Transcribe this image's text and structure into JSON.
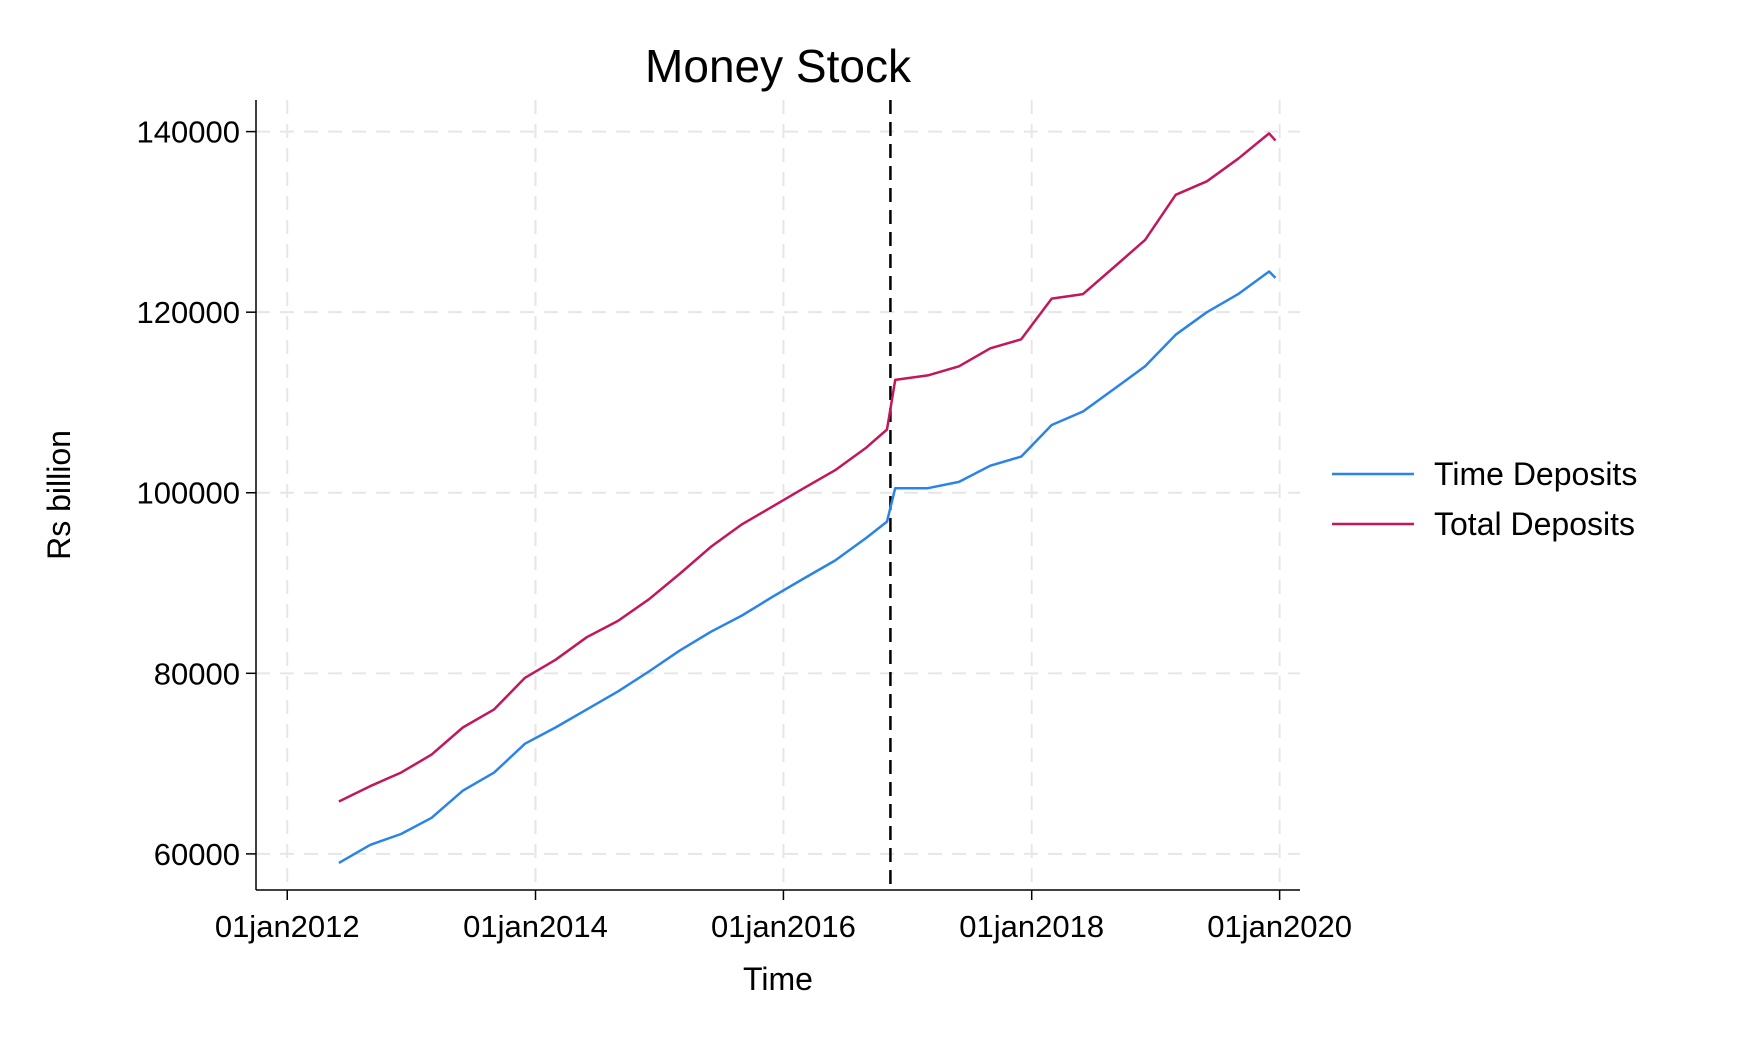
{
  "chart_data": {
    "type": "line",
    "title": "Money Stock",
    "xlabel": "Time",
    "ylabel": "Rs billion",
    "ylim": [
      56000,
      143500
    ],
    "xlim": [
      "2011-10-01",
      "2020-03-01"
    ],
    "y_ticks": [
      60000,
      80000,
      100000,
      120000,
      140000
    ],
    "x_ticks": [
      {
        "date": "2012-01-01",
        "label": "01jan2012"
      },
      {
        "date": "2014-01-01",
        "label": "01jan2014"
      },
      {
        "date": "2016-01-01",
        "label": "01jan2016"
      },
      {
        "date": "2018-01-01",
        "label": "01jan2018"
      },
      {
        "date": "2020-01-01",
        "label": "01jan2020"
      }
    ],
    "grid": true,
    "legend_position": "right",
    "reference_line": {
      "x": "2016-11-11",
      "style": "dashed",
      "color": "#000000"
    },
    "series": [
      {
        "name": "Time Deposits",
        "color": "#2a84e8",
        "points": [
          {
            "x": "2012-06-01",
            "y": 59000
          },
          {
            "x": "2012-09-01",
            "y": 61000
          },
          {
            "x": "2012-12-01",
            "y": 62200
          },
          {
            "x": "2013-03-01",
            "y": 64000
          },
          {
            "x": "2013-06-01",
            "y": 67000
          },
          {
            "x": "2013-09-01",
            "y": 69000
          },
          {
            "x": "2013-12-01",
            "y": 72200
          },
          {
            "x": "2014-03-01",
            "y": 74000
          },
          {
            "x": "2014-06-01",
            "y": 76000
          },
          {
            "x": "2014-09-01",
            "y": 78000
          },
          {
            "x": "2014-12-01",
            "y": 80200
          },
          {
            "x": "2015-03-01",
            "y": 82500
          },
          {
            "x": "2015-06-01",
            "y": 84600
          },
          {
            "x": "2015-09-01",
            "y": 86400
          },
          {
            "x": "2015-12-01",
            "y": 88500
          },
          {
            "x": "2016-03-01",
            "y": 90500
          },
          {
            "x": "2016-06-01",
            "y": 92500
          },
          {
            "x": "2016-09-01",
            "y": 95000
          },
          {
            "x": "2016-11-01",
            "y": 96800
          },
          {
            "x": "2016-11-25",
            "y": 100500
          },
          {
            "x": "2017-03-01",
            "y": 100500
          },
          {
            "x": "2017-06-01",
            "y": 101200
          },
          {
            "x": "2017-09-01",
            "y": 103000
          },
          {
            "x": "2017-12-01",
            "y": 104000
          },
          {
            "x": "2018-03-01",
            "y": 107500
          },
          {
            "x": "2018-06-01",
            "y": 109000
          },
          {
            "x": "2018-09-01",
            "y": 111500
          },
          {
            "x": "2018-12-01",
            "y": 114000
          },
          {
            "x": "2019-03-01",
            "y": 117500
          },
          {
            "x": "2019-06-01",
            "y": 120000
          },
          {
            "x": "2019-09-01",
            "y": 122000
          },
          {
            "x": "2019-12-01",
            "y": 124500
          },
          {
            "x": "2019-12-20",
            "y": 123800
          }
        ]
      },
      {
        "name": "Total Deposits",
        "color": "#c2185b",
        "points": [
          {
            "x": "2012-06-01",
            "y": 65800
          },
          {
            "x": "2012-09-01",
            "y": 67500
          },
          {
            "x": "2012-12-01",
            "y": 69000
          },
          {
            "x": "2013-03-01",
            "y": 71000
          },
          {
            "x": "2013-06-01",
            "y": 74000
          },
          {
            "x": "2013-09-01",
            "y": 76000
          },
          {
            "x": "2013-12-01",
            "y": 79500
          },
          {
            "x": "2014-03-01",
            "y": 81500
          },
          {
            "x": "2014-06-01",
            "y": 84000
          },
          {
            "x": "2014-09-01",
            "y": 85800
          },
          {
            "x": "2014-12-01",
            "y": 88200
          },
          {
            "x": "2015-03-01",
            "y": 91000
          },
          {
            "x": "2015-06-01",
            "y": 94000
          },
          {
            "x": "2015-09-01",
            "y": 96500
          },
          {
            "x": "2015-12-01",
            "y": 98500
          },
          {
            "x": "2016-03-01",
            "y": 100500
          },
          {
            "x": "2016-06-01",
            "y": 102500
          },
          {
            "x": "2016-09-01",
            "y": 105000
          },
          {
            "x": "2016-11-01",
            "y": 107000
          },
          {
            "x": "2016-11-25",
            "y": 112500
          },
          {
            "x": "2017-03-01",
            "y": 113000
          },
          {
            "x": "2017-06-01",
            "y": 114000
          },
          {
            "x": "2017-09-01",
            "y": 116000
          },
          {
            "x": "2017-12-01",
            "y": 117000
          },
          {
            "x": "2018-03-01",
            "y": 121500
          },
          {
            "x": "2018-06-01",
            "y": 122000
          },
          {
            "x": "2018-09-01",
            "y": 125000
          },
          {
            "x": "2018-12-01",
            "y": 128000
          },
          {
            "x": "2019-03-01",
            "y": 133000
          },
          {
            "x": "2019-06-01",
            "y": 134500
          },
          {
            "x": "2019-09-01",
            "y": 137000
          },
          {
            "x": "2019-12-01",
            "y": 139800
          },
          {
            "x": "2019-12-20",
            "y": 139000
          }
        ]
      }
    ]
  }
}
